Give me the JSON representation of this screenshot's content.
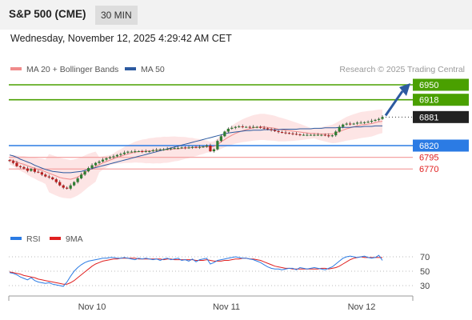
{
  "header": {
    "title": "S&P 500 (CME)",
    "timeframe": "30 MIN",
    "datetime": "Wednesday, November 12, 2025 4:29:42 AM CET"
  },
  "chart_data": [
    {
      "type": "line",
      "role": "price",
      "legend": [
        {
          "name": "MA 20 + Bollinger Bands",
          "color": "#f08b8b"
        },
        {
          "name": "MA 50",
          "color": "#2c5aa0"
        }
      ],
      "credit": "Research © 2025 Trading Central",
      "ylim": [
        6680,
        6960
      ],
      "price_labels": [
        {
          "value": 6950,
          "text": "6950",
          "color": "#4aa000",
          "kind": "resistance"
        },
        {
          "value": 6918,
          "text": "6918",
          "color": "#4aa000",
          "kind": "resistance"
        },
        {
          "value": 6881,
          "text": "6881",
          "color": "#222222",
          "kind": "last"
        },
        {
          "value": 6820,
          "text": "6820",
          "color": "#2b7be4",
          "kind": "pivot"
        },
        {
          "value": 6795,
          "text": "6795",
          "color": "#e02020",
          "kind": "support"
        },
        {
          "value": 6770,
          "text": "6770",
          "color": "#e02020",
          "kind": "support"
        }
      ],
      "close": [
        6787,
        6783,
        6776,
        6774,
        6771,
        6766,
        6770,
        6764,
        6763,
        6758,
        6754,
        6752,
        6748,
        6742,
        6735,
        6730,
        6728,
        6735,
        6742,
        6750,
        6758,
        6765,
        6772,
        6778,
        6783,
        6786,
        6790,
        6793,
        6795,
        6797,
        6800,
        6802,
        6805,
        6807,
        6807,
        6808,
        6808,
        6807,
        6808,
        6808,
        6810,
        6811,
        6812,
        6812,
        6813,
        6814,
        6815,
        6815,
        6816,
        6815,
        6816,
        6817,
        6816,
        6817,
        6818,
        6820,
        6808,
        6812,
        6830,
        6840,
        6850,
        6856,
        6858,
        6860,
        6861,
        6860,
        6860,
        6859,
        6860,
        6860,
        6858,
        6857,
        6855,
        6853,
        6851,
        6849,
        6848,
        6847,
        6846,
        6845,
        6844,
        6843,
        6843,
        6843,
        6843,
        6843,
        6843,
        6843,
        6842,
        6840,
        6842,
        6850,
        6860,
        6865,
        6867,
        6866,
        6867,
        6869,
        6869,
        6870,
        6871,
        6873,
        6875,
        6877,
        6881
      ],
      "ma20": [
        6790,
        6788,
        6785,
        6782,
        6780,
        6777,
        6774,
        6772,
        6769,
        6767,
        6764,
        6761,
        6758,
        6755,
        6752,
        6750,
        6749,
        6748,
        6750,
        6753,
        6757,
        6762,
        6767,
        6771,
        6775,
        6779,
        6783,
        6786,
        6789,
        6792,
        6795,
        6797,
        6800,
        6802,
        6804,
        6806,
        6807,
        6808,
        6808,
        6809,
        6809,
        6810,
        6810,
        6811,
        6811,
        6812,
        6813,
        6813,
        6814,
        6815,
        6815,
        6816,
        6816,
        6817,
        6817,
        6818,
        6817,
        6818,
        6822,
        6828,
        6833,
        6838,
        6842,
        6846,
        6849,
        6852,
        6854,
        6856,
        6858,
        6859,
        6860,
        6860,
        6859,
        6858,
        6857,
        6855,
        6854,
        6853,
        6852,
        6851,
        6850,
        6849,
        6848,
        6847,
        6846,
        6846,
        6845,
        6845,
        6845,
        6845,
        6845,
        6847,
        6850,
        6853,
        6856,
        6858,
        6860,
        6862,
        6864,
        6865,
        6866,
        6867,
        6869,
        6871,
        6872
      ],
      "ma50": [
        6800,
        6798,
        6795,
        6791,
        6788,
        6785,
        6782,
        6778,
        6775,
        6772,
        6769,
        6767,
        6765,
        6764,
        6763,
        6762,
        6762,
        6762,
        6763,
        6764,
        6765,
        6767,
        6769,
        6771,
        6773,
        6775,
        6777,
        6779,
        6781,
        6783,
        6785,
        6787,
        6789,
        6791,
        6793,
        6795,
        6797,
        6799,
        6801,
        6803,
        6805,
        6807,
        6809,
        6811,
        6813,
        6815,
        6817,
        6819,
        6821,
        6823,
        6825,
        6827,
        6829,
        6831,
        6833,
        6835,
        6837,
        6839,
        6841,
        6843,
        6845,
        6847,
        6848,
        6849,
        6850,
        6851,
        6852,
        6852,
        6853,
        6853,
        6853,
        6854,
        6854,
        6854,
        6854,
        6854,
        6855,
        6855,
        6855,
        6855,
        6855,
        6856,
        6856,
        6856,
        6856,
        6857,
        6857,
        6857,
        6858,
        6858,
        6858,
        6858,
        6859,
        6859,
        6859,
        6859,
        6860,
        6860,
        6860,
        6861,
        6861,
        6861,
        6862,
        6862,
        6862
      ]
    },
    {
      "type": "line",
      "role": "rsi",
      "legend": [
        {
          "name": "RSI",
          "color": "#2b7be4"
        },
        {
          "name": "9MA",
          "color": "#e02020"
        }
      ],
      "ylim": [
        20,
        80
      ],
      "y_ticks": [
        70,
        50,
        30
      ],
      "x_ticks": [
        "Nov 10",
        "Nov 11",
        "Nov 12"
      ],
      "rsi": [
        48,
        47,
        45,
        42,
        40,
        38,
        41,
        37,
        35,
        34,
        33,
        34,
        32,
        31,
        30,
        29,
        35,
        43,
        50,
        55,
        59,
        62,
        64,
        65,
        66,
        67,
        68,
        68,
        69,
        69,
        68,
        68,
        69,
        68,
        67,
        66,
        68,
        67,
        68,
        67,
        66,
        67,
        65,
        67,
        68,
        66,
        67,
        68,
        65,
        66,
        64,
        67,
        63,
        66,
        67,
        68,
        60,
        62,
        65,
        66,
        67,
        68,
        69,
        70,
        69,
        68,
        68,
        67,
        66,
        64,
        62,
        59,
        56,
        54,
        53,
        53,
        52,
        53,
        54,
        54,
        52,
        55,
        54,
        53,
        54,
        55,
        54,
        53,
        52,
        54,
        56,
        60,
        64,
        68,
        70,
        71,
        70,
        69,
        70,
        71,
        69,
        68,
        69,
        72,
        65
      ],
      "ma9": [
        49,
        48,
        47,
        46,
        44,
        43,
        42,
        41,
        39,
        38,
        37,
        36,
        35,
        34,
        33,
        32,
        32,
        34,
        37,
        41,
        45,
        49,
        53,
        57,
        60,
        62,
        64,
        65,
        66,
        67,
        67,
        68,
        68,
        68,
        68,
        68,
        67,
        67,
        67,
        67,
        67,
        67,
        67,
        66,
        67,
        67,
        66,
        66,
        66,
        66,
        66,
        66,
        65,
        65,
        65,
        66,
        65,
        64,
        64,
        64,
        65,
        65,
        66,
        67,
        67,
        68,
        68,
        67,
        67,
        66,
        65,
        63,
        61,
        59,
        57,
        56,
        55,
        54,
        54,
        53,
        53,
        53,
        53,
        53,
        53,
        53,
        53,
        54,
        54,
        53,
        54,
        55,
        57,
        60,
        63,
        66,
        68,
        69,
        70,
        69,
        69,
        69,
        69,
        69,
        69
      ]
    }
  ]
}
